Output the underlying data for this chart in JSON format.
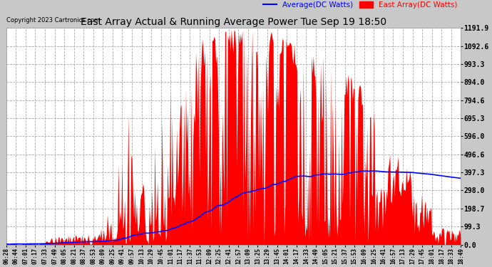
{
  "title": "East Array Actual & Running Average Power Tue Sep 19 18:50",
  "copyright": "Copyright 2023 Cartronics.com",
  "legend_avg": "Average(DC Watts)",
  "legend_east": "East Array(DC Watts)",
  "ylabel_right_ticks": [
    0.0,
    99.3,
    198.7,
    298.0,
    397.3,
    496.6,
    596.0,
    695.3,
    794.6,
    894.0,
    993.3,
    1092.6,
    1191.9
  ],
  "ymax": 1191.9,
  "ymin": 0.0,
  "plot_bg_color": "#ffffff",
  "grid_color": "#aaaaaa",
  "east_color": "#ff0000",
  "avg_color": "#0000ff",
  "fig_bg_color": "#c8c8c8",
  "x_labels": [
    "06:28",
    "06:44",
    "07:01",
    "07:17",
    "07:33",
    "07:49",
    "08:05",
    "08:21",
    "08:37",
    "08:53",
    "09:09",
    "09:25",
    "09:41",
    "09:57",
    "10:13",
    "10:29",
    "10:45",
    "11:01",
    "11:17",
    "11:37",
    "11:53",
    "12:09",
    "12:25",
    "12:41",
    "12:57",
    "13:09",
    "13:25",
    "13:29",
    "13:45",
    "14:01",
    "14:17",
    "14:33",
    "14:49",
    "15:05",
    "15:21",
    "15:37",
    "15:53",
    "16:09",
    "16:25",
    "16:41",
    "16:57",
    "17:13",
    "17:29",
    "17:45",
    "18:01",
    "18:17",
    "18:33",
    "18:49"
  ]
}
